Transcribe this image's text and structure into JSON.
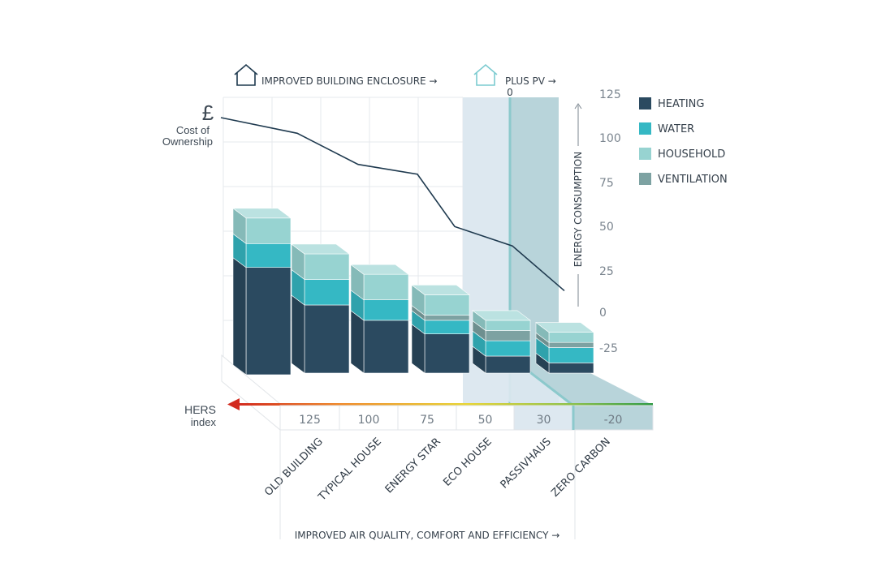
{
  "chart_data": {
    "type": "bar",
    "stacked": true,
    "categories": [
      "OLD BUILDING",
      "TYPICAL HOUSE",
      "ENERGY STAR",
      "ECO HOUSE",
      "PASSIVHAUS",
      "ZERO CARBON"
    ],
    "hers_index": [
      "125",
      "100",
      "75",
      "50",
      "30",
      "-20"
    ],
    "series": [
      {
        "name": "HEATING",
        "color": "#2b4a60",
        "values": [
          63,
          40,
          31,
          23,
          10,
          6
        ]
      },
      {
        "name": "WATER",
        "color": "#35b8c4",
        "values": [
          14,
          15,
          12,
          8,
          9,
          9
        ]
      },
      {
        "name": "HOUSEHOLD",
        "color": "#97d3d1",
        "values": [
          15,
          15,
          15,
          12,
          6,
          6
        ]
      },
      {
        "name": "VENTILATION",
        "color": "#7da2a2",
        "values": [
          0,
          0,
          0,
          3,
          6,
          3
        ]
      }
    ],
    "cost_of_ownership": [
      110,
      84,
      78,
      51,
      40,
      15
    ],
    "yaxis": {
      "label": "ENERGY CONSUMPTION",
      "ticks": [
        "125",
        "100",
        "75",
        "50",
        "25",
        "0",
        "-25"
      ],
      "ylim": [
        -35,
        125
      ]
    },
    "legend_position": "right"
  },
  "labels": {
    "enclosure": "IMPROVED BUILDING ENCLOSURE →",
    "pv": "PLUS PV →",
    "pv_zero": "0",
    "currency": "£",
    "cost_line1": "Cost of",
    "cost_line2": "Ownership",
    "hers_line1": "HERS",
    "hers_line2": "index",
    "bottom": "IMPROVED AIR QUALITY, COMFORT AND EFFICIENCY →"
  },
  "colors": {
    "cost_line": "#1f3a4f",
    "pv_light": "#dde8f0",
    "pv_dark": "#b8d4da",
    "pv_edge": "#8cc9cc",
    "grid": "#e6e9ec"
  }
}
